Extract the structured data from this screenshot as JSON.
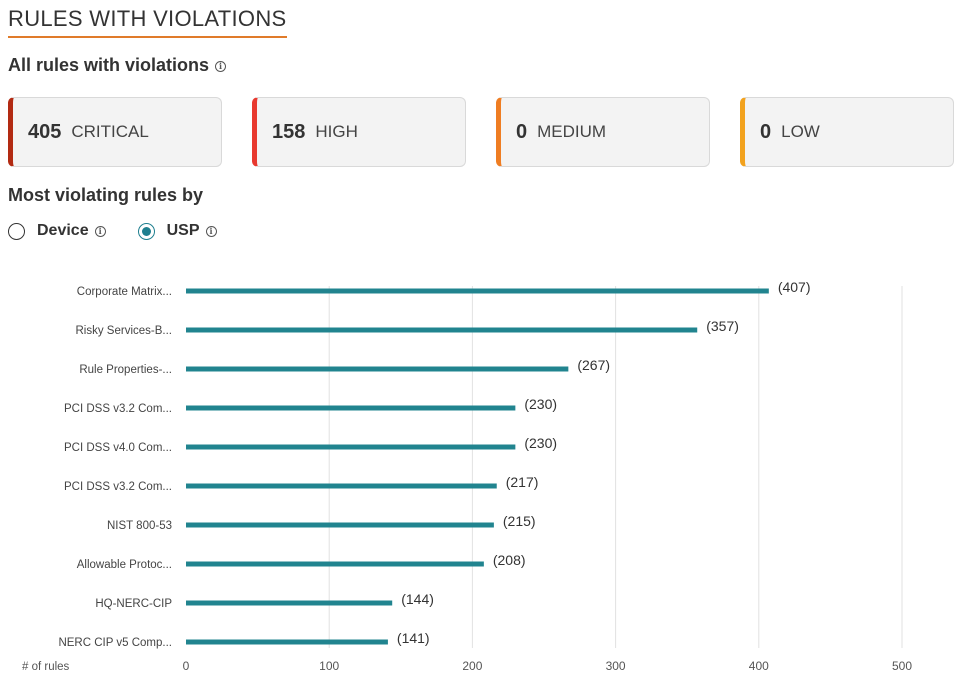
{
  "header": {
    "title": "RULES WITH VIOLATIONS"
  },
  "summary": {
    "title": "All rules with violations",
    "cards": [
      {
        "count": "405",
        "level": "CRITICAL",
        "color": "#b22a12"
      },
      {
        "count": "158",
        "level": "HIGH",
        "color": "#e8392f"
      },
      {
        "count": "0",
        "level": "MEDIUM",
        "color": "#ef7d22"
      },
      {
        "count": "0",
        "level": "LOW",
        "color": "#f2a21e"
      }
    ]
  },
  "breakdown": {
    "title": "Most violating rules by",
    "options": [
      {
        "label": "Device",
        "selected": false
      },
      {
        "label": "USP",
        "selected": true
      }
    ]
  },
  "chart_data": {
    "type": "bar",
    "orientation": "horizontal",
    "categories": [
      "Corporate Matrix...",
      "Risky Services-B...",
      "Rule Properties-...",
      "PCI DSS v3.2 Com...",
      "PCI DSS v4.0 Com...",
      "PCI DSS v3.2 Com...",
      "NIST 800-53",
      "Allowable Protoc...",
      "HQ-NERC-CIP",
      "NERC CIP v5 Comp..."
    ],
    "values": [
      407,
      357,
      267,
      230,
      230,
      217,
      215,
      208,
      144,
      141
    ],
    "value_labels": [
      "(407)",
      "(357)",
      "(267)",
      "(230)",
      "(230)",
      "(217)",
      "(215)",
      "(208)",
      "(144)",
      "(141)"
    ],
    "xlabel": "# of rules",
    "xlim": [
      0,
      500
    ],
    "xticks": [
      "0",
      "100",
      "200",
      "300",
      "400",
      "500"
    ],
    "grid": true,
    "bar_color": "#21848f"
  }
}
